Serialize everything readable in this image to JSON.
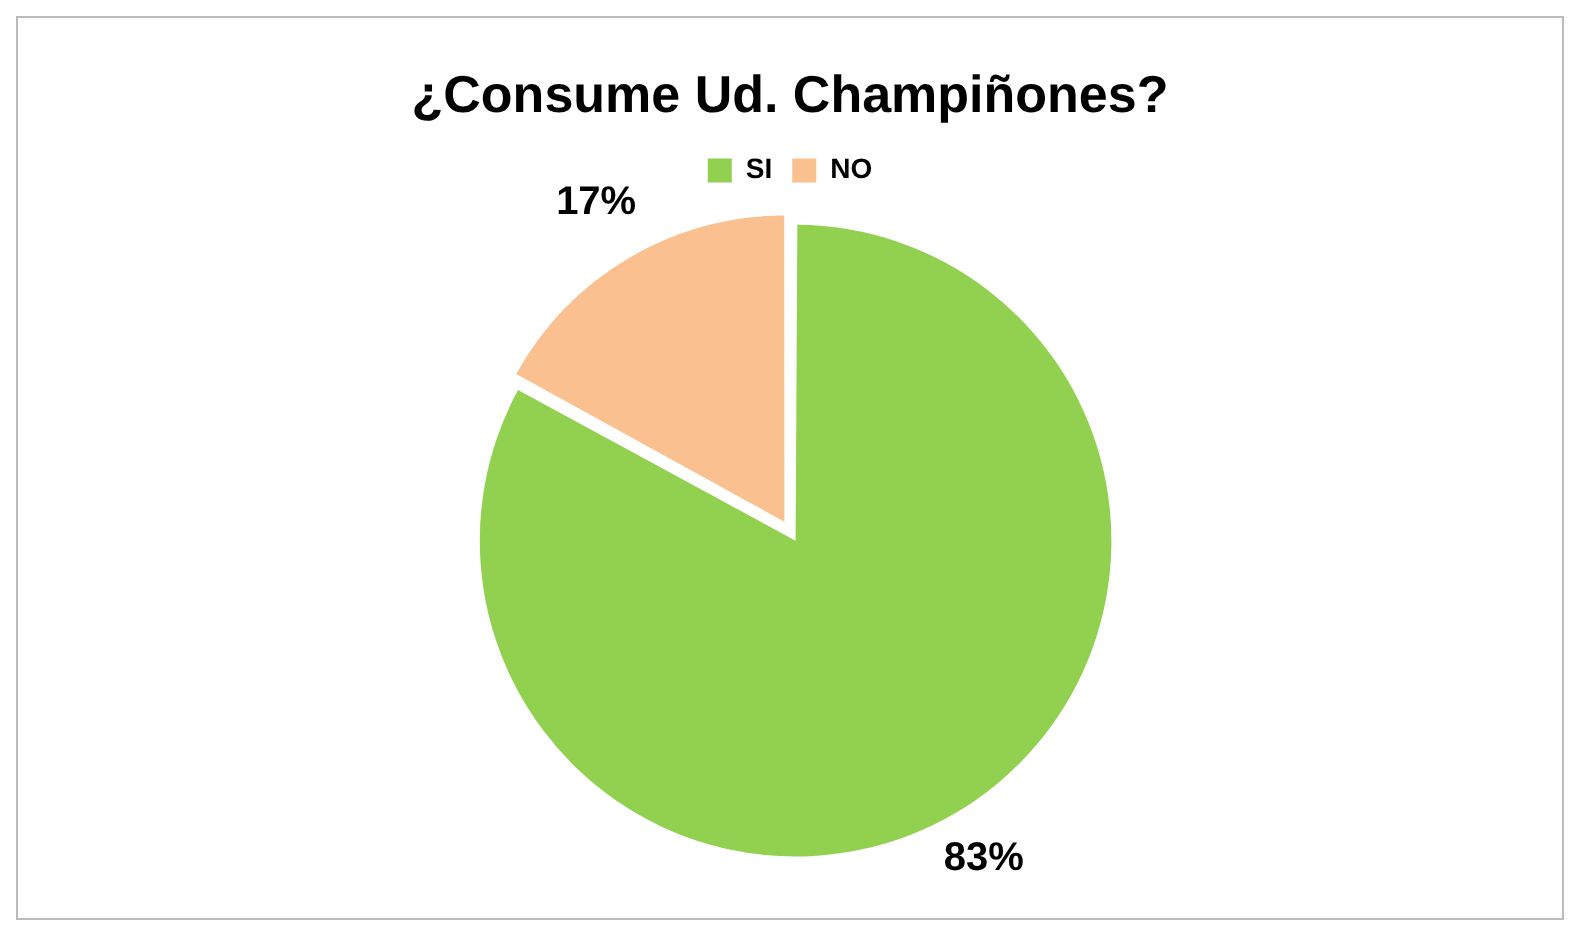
{
  "chart_data": {
    "type": "pie",
    "title": "¿Consume Ud. Champiñones?",
    "categories": [
      "SI",
      "NO"
    ],
    "values": [
      83,
      17
    ],
    "colors": [
      "#92d050",
      "#fac090"
    ],
    "value_labels": [
      "83%",
      "17%"
    ],
    "legend": "top"
  }
}
